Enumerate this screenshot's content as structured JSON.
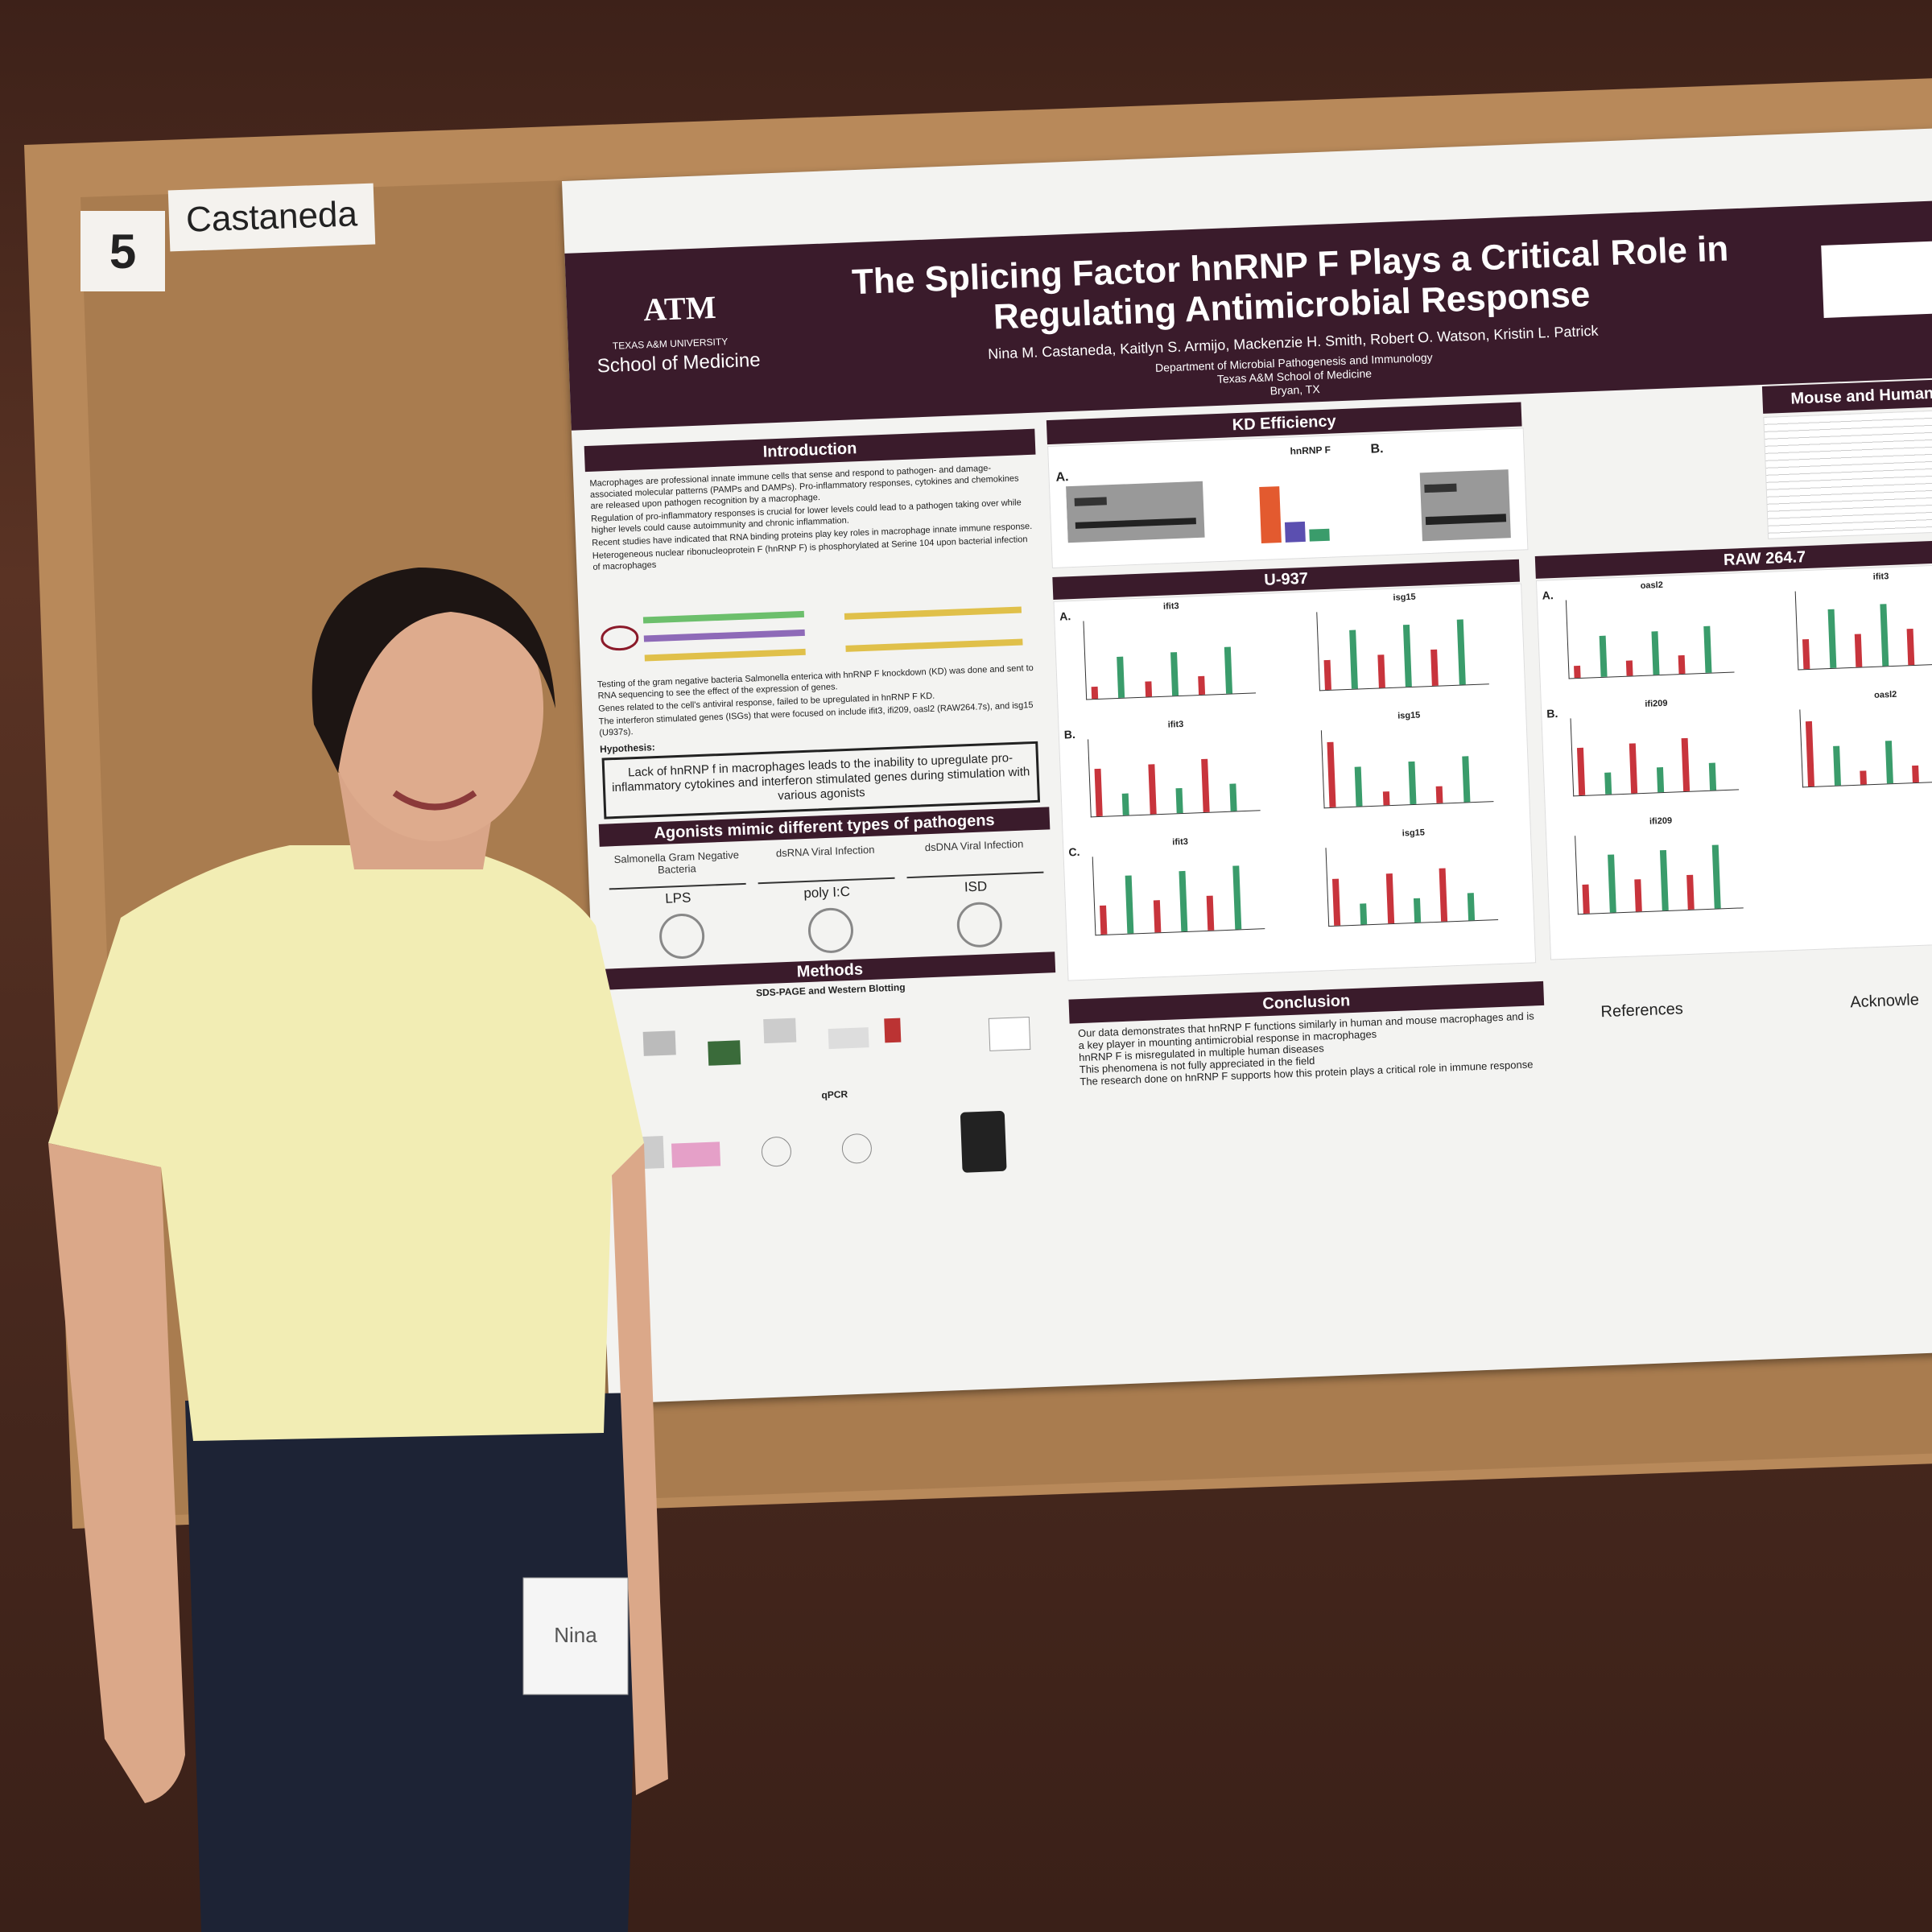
{
  "board": {
    "number": "5",
    "name": "Castaneda"
  },
  "poster": {
    "logo": {
      "mark": "ATM",
      "university": "TEXAS A&M UNIVERSITY",
      "school": "School of Medicine"
    },
    "title": "The Splicing Factor hnRNP F Plays a Critical Role in Regulating Antimicrobial Response",
    "authors": "Nina M. Castaneda, Kaitlyn S. Armijo, Mackenzie H. Smith, Robert O. Watson, Kristin L. Patrick",
    "affiliation": [
      "Department of Microbial Pathogenesis and Immunology",
      "Texas A&M School of Medicine",
      "Bryan, TX"
    ],
    "introduction": {
      "heading": "Introduction",
      "bullets": [
        "Macrophages are professional innate immune cells that sense and respond to pathogen- and damage-associated molecular patterns (PAMPs and DAMPs). Pro-inflammatory responses, cytokines and chemokines are released upon pathogen recognition by a macrophage.",
        "Regulation of pro-inflammatory responses is crucial for lower levels could lead to a pathogen taking over while higher levels could cause autoimmunity and chronic inflammation.",
        "Recent studies have indicated that RNA binding proteins play key roles in macrophage innate immune response.",
        "Heterogeneous nuclear ribonucleoprotein F (hnRNP F) is phosphorylated at Serine 104 upon bacterial infection of macrophages"
      ],
      "bullets_after": [
        "Testing of the gram negative bacteria Salmonella enterica with hnRNP F knockdown (KD) was done and sent to RNA sequencing to see the effect of the expression of genes.",
        "Genes related to the cell's antiviral response, failed to be upregulated in hnRNP F KD.",
        "The interferon stimulated genes (ISGs) that were focused on include ifit3, ifi209, oasl2 (RAW264.7s), and isg15 (U937s)."
      ],
      "hypothesis_label": "Hypothesis:",
      "hypothesis": "Lack of hnRNP f in macrophages leads to the inability to upregulate pro-inflammatory cytokines and interferon stimulated genes during stimulation with various agonists"
    },
    "agonists": {
      "heading": "Agonists mimic different types of pathogens",
      "items": [
        {
          "label": "Salmonella Gram Negative Bacteria",
          "agonist": "LPS"
        },
        {
          "label": "dsRNA Viral Infection",
          "agonist": "poly I:C"
        },
        {
          "label": "dsDNA Viral Infection",
          "agonist": "ISD"
        }
      ]
    },
    "methods": {
      "heading": "Methods",
      "parts": [
        "SDS-PAGE and Western Blotting",
        "qPCR"
      ]
    },
    "kd_efficiency": {
      "heading": "KD Efficiency",
      "panels": [
        "A.",
        "B."
      ],
      "chart_title": "hnRNP F"
    },
    "u937": {
      "heading": "U-937",
      "charts": [
        "ifit3",
        "isg15",
        "ifit3",
        "isg15",
        "ifit3",
        "isg15"
      ],
      "panels": [
        "A.",
        "B.",
        "C."
      ]
    },
    "raw": {
      "heading": "RAW 264.7",
      "charts": [
        "oasl2",
        "ifit3",
        "ifi209",
        "oasl2",
        "ifi209"
      ],
      "panels": [
        "A.",
        "B."
      ]
    },
    "mouse_human": {
      "heading": "Mouse and Human Co"
    },
    "conclusion": {
      "heading": "Conclusion",
      "bullets": [
        "Our data demonstrates that hnRNP F functions similarly in human and mouse macrophages and is a key player in mounting antimicrobial response in macrophages",
        "hnRNP F is misregulated in multiple human diseases",
        "This phenomena is not fully appreciated in the field",
        "The research done on hnRNP F supports how this protein plays a critical role in immune response"
      ]
    },
    "references": {
      "heading": "References"
    },
    "acknowledgements": {
      "heading": "Acknowle"
    }
  },
  "badge": {
    "name": "Nina"
  }
}
